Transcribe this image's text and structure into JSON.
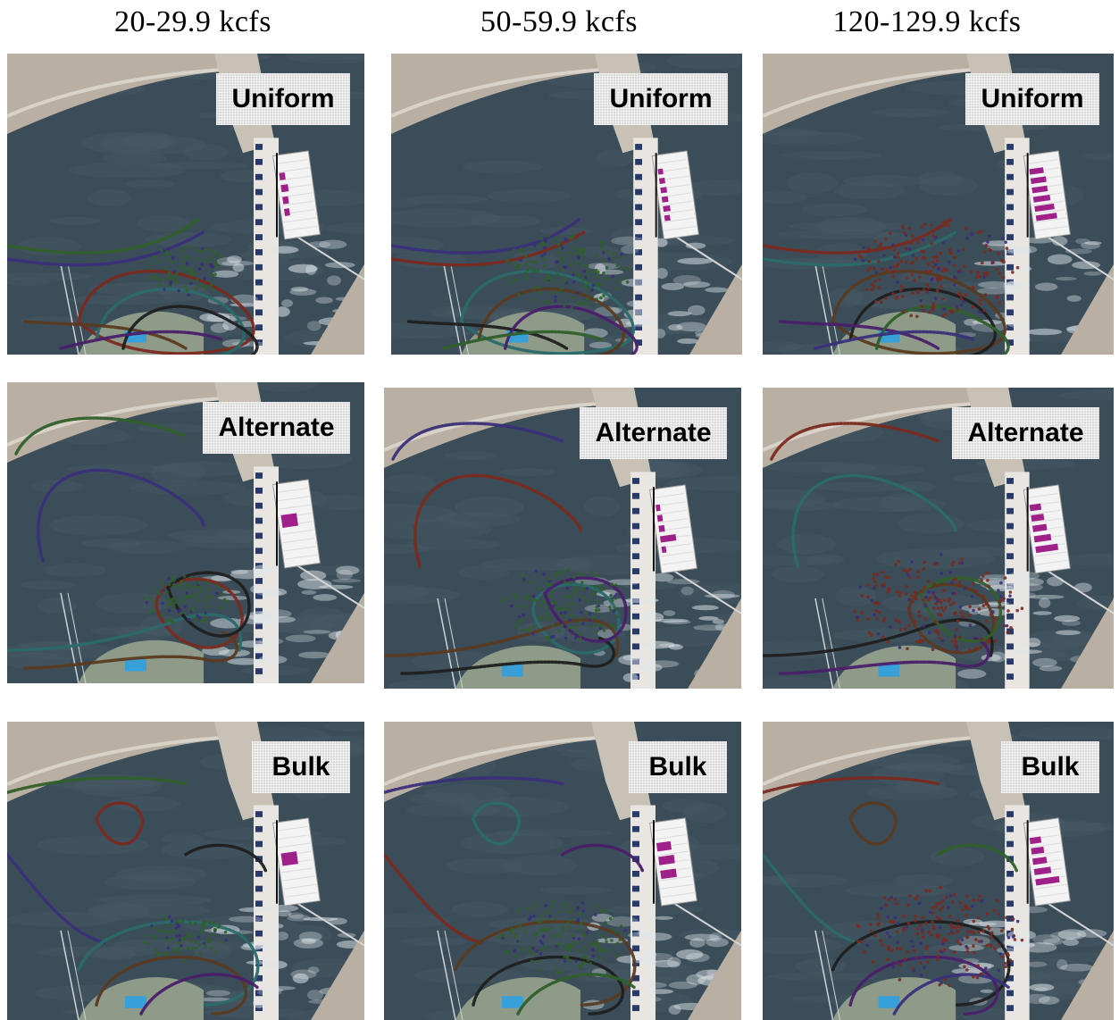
{
  "columns": [
    "20-29.9 kcfs",
    "50-59.9 kcfs",
    "120-129.9 kcfs"
  ],
  "rows": [
    "Uniform",
    "Alternate",
    "Bulk"
  ],
  "colors": {
    "water": "#3b4d58",
    "land": "#b9b0a3",
    "dam": "#e9e6e1",
    "bar": "#a0208a",
    "tracks": [
      "#2f5f2a",
      "#3a2f7a",
      "#7a2a20",
      "#2a6a6a",
      "#5a3a20",
      "#1f1f1f",
      "#4a1f6a"
    ]
  },
  "panels": [
    {
      "row": "Uniform",
      "column": "20-29.9 kcfs",
      "label": "Uniform",
      "bars": [
        0.2,
        0.25,
        0.2,
        0.18
      ]
    },
    {
      "row": "Uniform",
      "column": "50-59.9 kcfs",
      "label": "Uniform",
      "bars": [
        0.18,
        0.2,
        0.22,
        0.22,
        0.25,
        0.2
      ]
    },
    {
      "row": "Uniform",
      "column": "120-129.9 kcfs",
      "label": "Uniform",
      "bars": [
        0.5,
        0.55,
        0.55,
        0.6,
        0.7,
        0.75
      ]
    },
    {
      "row": "Alternate",
      "column": "20-29.9 kcfs",
      "label": "Alternate",
      "bars": [
        0.55
      ]
    },
    {
      "row": "Alternate",
      "column": "50-59.9 kcfs",
      "label": "Alternate",
      "bars": [
        0.15,
        0.18,
        0.2,
        0.55,
        0.15
      ]
    },
    {
      "row": "Alternate",
      "column": "120-129.9 kcfs",
      "label": "Alternate",
      "bars": [
        0.4,
        0.45,
        0.5,
        0.6,
        0.8
      ]
    },
    {
      "row": "Bulk",
      "column": "20-29.9 kcfs",
      "label": "Bulk",
      "bars": [
        0.55
      ]
    },
    {
      "row": "Bulk",
      "column": "50-59.9 kcfs",
      "label": "Bulk",
      "bars": [
        0.5,
        0.55,
        0.55
      ]
    },
    {
      "row": "Bulk",
      "column": "120-129.9 kcfs",
      "label": "Bulk",
      "bars": [
        0.4,
        0.45,
        0.5,
        0.6,
        0.85
      ]
    }
  ]
}
